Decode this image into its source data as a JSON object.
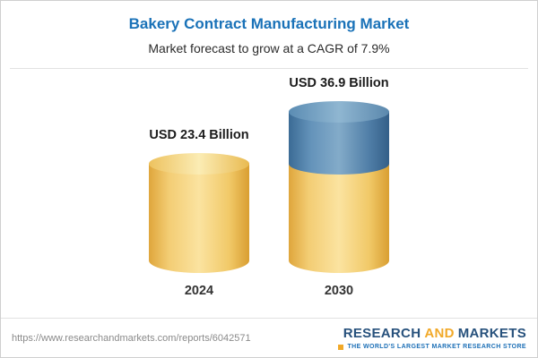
{
  "chart_data": {
    "type": "bar",
    "subtype": "3d-cylinder",
    "title": "Bakery Contract Manufacturing Market",
    "subtitle": "Market forecast to grow at a CAGR of 7.9%",
    "cagr_percent": 7.9,
    "categories": [
      "2024",
      "2030"
    ],
    "values": [
      23.4,
      36.9
    ],
    "value_labels": [
      "USD 23.4 Billion",
      "USD 36.9 Billion"
    ],
    "unit": "USD Billion",
    "colors": {
      "base_segment": "#F5D070",
      "growth_segment": "#4E81AC",
      "title": "#1A72B8"
    },
    "legend": "none",
    "notes": "2030 cylinder is stacked: yellow base equal to 2024 value plus blue growth segment for the difference (13.5)"
  },
  "footer": {
    "url": "https://www.researchandmarkets.com/reports/6042571",
    "logo": {
      "part1": "RESEARCH",
      "part2": "AND",
      "part3": "MARKETS",
      "tagline": "THE WORLD'S LARGEST MARKET RESEARCH STORE"
    }
  }
}
